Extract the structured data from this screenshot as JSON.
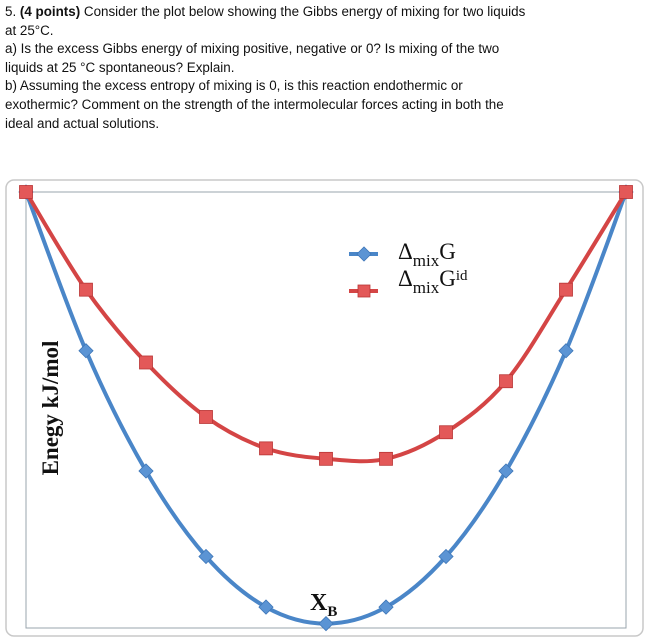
{
  "question": {
    "number": "5.",
    "points": "(4 points)",
    "intro_line1": " Consider the plot below showing the Gibbs energy of mixing for two liquids",
    "intro_line2": "at 25°C.",
    "part_a_line1": "a) Is the excess Gibbs energy of mixing positive, negative or 0?  Is mixing of the two",
    "part_a_line2": "liquids at 25 °C spontaneous? Explain.",
    "part_b_line1": "b) Assuming the excess entropy of mixing is 0, is this reaction endothermic or",
    "part_b_line2": "exothermic? Comment on the strength of the intermolecular forces acting in both the",
    "part_b_line3": "ideal and actual solutions."
  },
  "chart_data": {
    "type": "line",
    "title": "",
    "xlabel": "X",
    "xlabel_sub": "B",
    "ylabel": "Enegy kJ/mol",
    "x": [
      0,
      0.1,
      0.2,
      0.3,
      0.4,
      0.5,
      0.6,
      0.7,
      0.8,
      0.9,
      1.0
    ],
    "xlim": [
      0,
      1
    ],
    "ylim": [
      -1,
      0
    ],
    "series": [
      {
        "name_main": "Δ",
        "name_sub": "mix",
        "name_tail": "G",
        "color": "#4a86c8",
        "marker": "diamond",
        "values": [
          0,
          -0.364,
          -0.64,
          -0.836,
          -0.952,
          -0.99,
          -0.952,
          -0.836,
          -0.64,
          -0.364,
          0
        ]
      },
      {
        "name_main": "Δ",
        "name_sub": "mix",
        "name_tail": "G",
        "name_sup": "id",
        "color": "#d44545",
        "marker": "square",
        "values": [
          0,
          -0.224,
          -0.391,
          -0.516,
          -0.588,
          -0.612,
          -0.612,
          -0.551,
          -0.434,
          -0.224,
          0
        ]
      }
    ],
    "grid": false,
    "legend_position": "upper-right"
  }
}
